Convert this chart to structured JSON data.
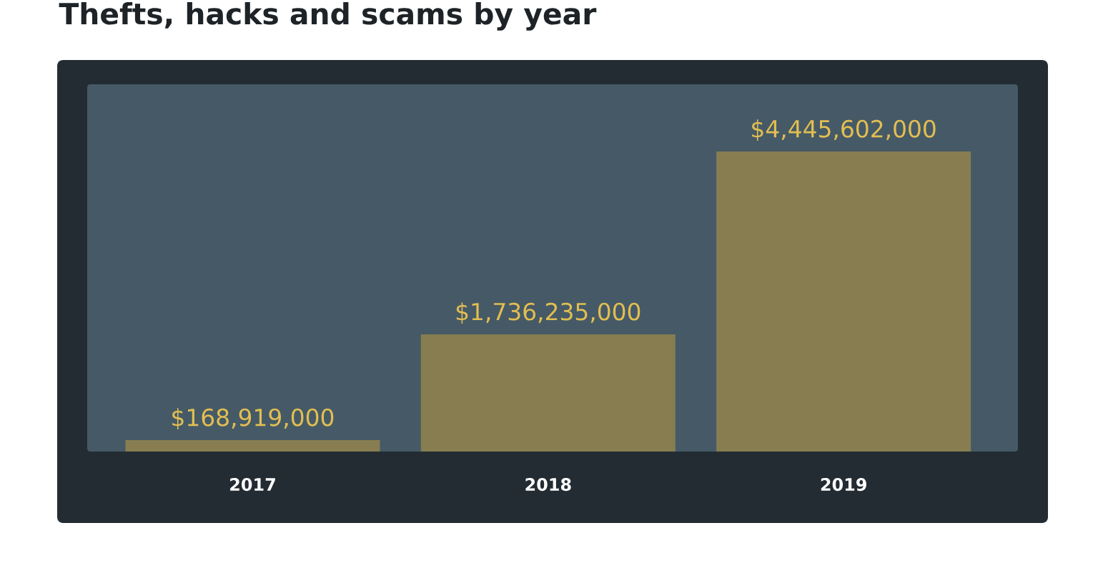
{
  "chart_data": {
    "type": "bar",
    "title": "Thefts, hacks and scams by year",
    "categories": [
      "2017",
      "2018",
      "2019"
    ],
    "values": [
      168919000,
      1736235000,
      4445602000
    ],
    "value_labels": [
      "$168,919,000",
      "$1,736,235,000",
      "$4,445,602,000"
    ],
    "color": "#877d50"
  }
}
